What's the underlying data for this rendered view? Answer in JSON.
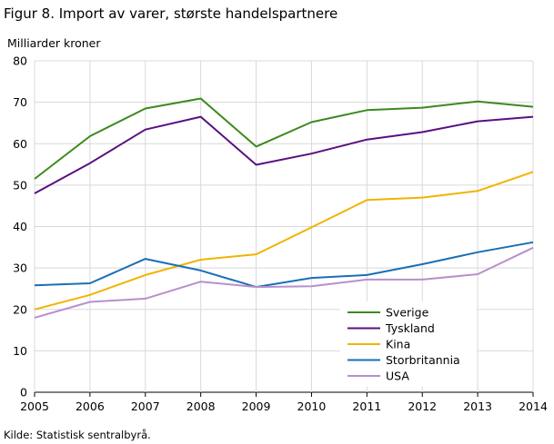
{
  "chart_data": {
    "type": "line",
    "title": "Figur 8. Import av varer, største handelspartnere",
    "ylabel": "Milliarder  kroner",
    "xlabel": "",
    "source": "Kilde: Statistisk sentralbyrå.",
    "ylim": [
      0,
      80
    ],
    "yticks": [
      0,
      10,
      20,
      30,
      40,
      50,
      60,
      70,
      80
    ],
    "x": [
      "2005",
      "2006",
      "2007",
      "2008",
      "2009",
      "2010",
      "2011",
      "2012",
      "2013",
      "2014"
    ],
    "grid": "horizontal",
    "legend": "bottom-right",
    "series": [
      {
        "name": "Sverige",
        "color": "#3a8a1e",
        "values": [
          51.5,
          61.8,
          68.5,
          70.9,
          59.3,
          65.2,
          68.1,
          68.7,
          70.2,
          68.9
        ]
      },
      {
        "name": "Tyskland",
        "color": "#5a1080",
        "values": [
          48.0,
          55.3,
          63.4,
          66.5,
          54.9,
          57.6,
          61.0,
          62.8,
          65.4,
          66.5
        ]
      },
      {
        "name": "Kina",
        "color": "#f0b400",
        "values": [
          20.0,
          23.5,
          28.3,
          32.0,
          33.3,
          39.8,
          46.4,
          47.0,
          48.6,
          53.2
        ]
      },
      {
        "name": "Storbritannia",
        "color": "#1a6fb5",
        "values": [
          25.8,
          26.3,
          32.2,
          29.4,
          25.4,
          27.6,
          28.3,
          30.9,
          33.8,
          36.2
        ]
      },
      {
        "name": "USA",
        "color": "#b88fcc",
        "values": [
          18.0,
          21.8,
          22.6,
          26.7,
          25.4,
          25.6,
          27.2,
          27.2,
          28.5,
          34.9
        ]
      }
    ]
  }
}
